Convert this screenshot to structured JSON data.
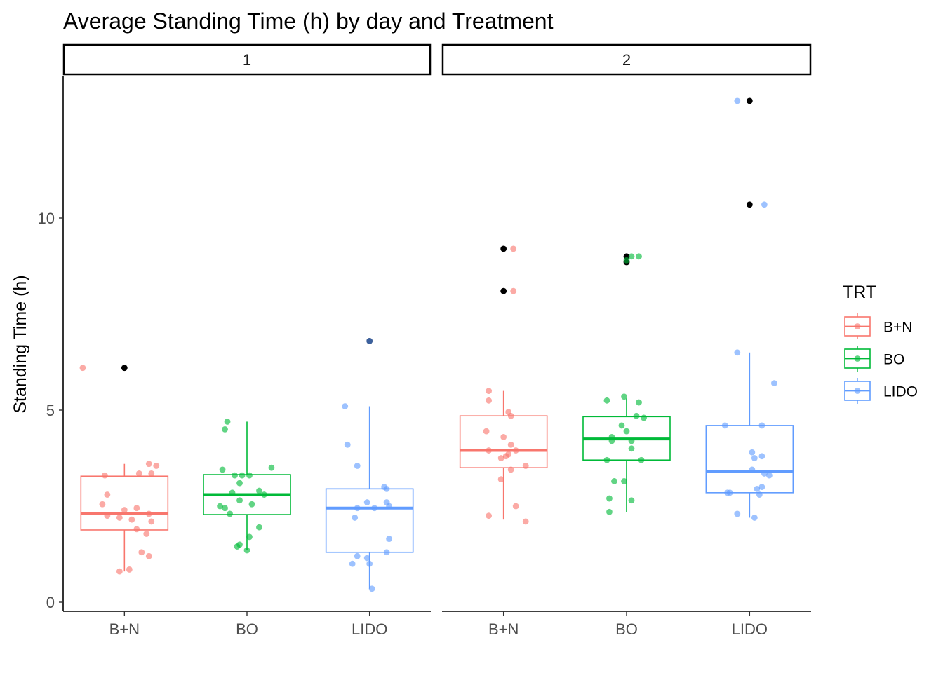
{
  "chart_data": {
    "type": "boxplot",
    "title": "Average Standing Time (h) by day and Treatment",
    "ylabel": "Standing Time (h)",
    "xlabel": "",
    "ylim": [
      -0.3,
      13.4
    ],
    "yticks": [
      0,
      5,
      10
    ],
    "categories": [
      "B+N",
      "BO",
      "LIDO"
    ],
    "facets": [
      "1",
      "2"
    ],
    "legend": {
      "title": "TRT",
      "position": "right",
      "entries": [
        "B+N",
        "BO",
        "LIDO"
      ]
    },
    "colors": {
      "B+N": "#F8766D",
      "BO": "#00BA38",
      "LIDO": "#619CFF",
      "outlier": "#000000"
    },
    "panels": [
      {
        "facet": "1",
        "groups": [
          {
            "name": "B+N",
            "box": {
              "lower_whisker": 0.8,
              "q1": 1.88,
              "median": 2.3,
              "q3": 3.28,
              "upper_whisker": 3.6
            },
            "outliers": [
              6.1
            ],
            "points": [
              [
                -0.34,
                6.1
              ],
              [
                -0.16,
                3.3
              ],
              [
                0.2,
                3.6
              ],
              [
                0.26,
                3.55
              ],
              [
                0.12,
                3.35
              ],
              [
                0.22,
                3.35
              ],
              [
                -0.14,
                2.8
              ],
              [
                -0.18,
                2.55
              ],
              [
                0.0,
                2.4
              ],
              [
                0.1,
                2.45
              ],
              [
                0.2,
                2.3
              ],
              [
                -0.14,
                2.25
              ],
              [
                -0.04,
                2.2
              ],
              [
                0.22,
                2.1
              ],
              [
                0.06,
                2.15
              ],
              [
                0.1,
                1.9
              ],
              [
                0.18,
                1.78
              ],
              [
                0.14,
                1.3
              ],
              [
                0.2,
                1.2
              ],
              [
                -0.04,
                0.8
              ],
              [
                0.04,
                0.85
              ]
            ]
          },
          {
            "name": "BO",
            "box": {
              "lower_whisker": 1.35,
              "q1": 2.28,
              "median": 2.8,
              "q3": 3.32,
              "upper_whisker": 4.7
            },
            "outliers": [],
            "points": [
              [
                -0.16,
                4.7
              ],
              [
                -0.18,
                4.5
              ],
              [
                -0.2,
                3.45
              ],
              [
                0.2,
                3.5
              ],
              [
                -0.1,
                3.3
              ],
              [
                0.02,
                3.3
              ],
              [
                -0.04,
                3.3
              ],
              [
                -0.06,
                3.1
              ],
              [
                -0.12,
                2.85
              ],
              [
                0.1,
                2.9
              ],
              [
                0.14,
                2.8
              ],
              [
                -0.06,
                2.65
              ],
              [
                -0.22,
                2.5
              ],
              [
                -0.18,
                2.45
              ],
              [
                0.04,
                2.55
              ],
              [
                -0.14,
                2.3
              ],
              [
                0.02,
                1.7
              ],
              [
                0.1,
                1.95
              ],
              [
                -0.06,
                1.5
              ],
              [
                -0.08,
                1.45
              ],
              [
                0.0,
                1.35
              ]
            ]
          },
          {
            "name": "LIDO",
            "box": {
              "lower_whisker": 0.35,
              "q1": 1.3,
              "median": 2.45,
              "q3": 2.95,
              "upper_whisker": 5.1
            },
            "outliers": [
              6.8
            ],
            "points": [
              [
                0.0,
                6.8
              ],
              [
                -0.2,
                5.1
              ],
              [
                -0.18,
                4.1
              ],
              [
                -0.1,
                3.55
              ],
              [
                0.12,
                3.0
              ],
              [
                0.14,
                2.95
              ],
              [
                -0.02,
                2.6
              ],
              [
                0.14,
                2.6
              ],
              [
                0.16,
                2.5
              ],
              [
                -0.1,
                2.45
              ],
              [
                0.04,
                2.45
              ],
              [
                -0.12,
                2.2
              ],
              [
                0.16,
                1.65
              ],
              [
                -0.1,
                1.2
              ],
              [
                -0.02,
                1.15
              ],
              [
                0.14,
                1.3
              ],
              [
                -0.14,
                1.0
              ],
              [
                0.0,
                1.0
              ],
              [
                0.02,
                0.35
              ]
            ]
          }
        ]
      },
      {
        "facet": "2",
        "groups": [
          {
            "name": "B+N",
            "box": {
              "lower_whisker": 2.15,
              "q1": 3.5,
              "median": 3.95,
              "q3": 4.85,
              "upper_whisker": 5.5
            },
            "outliers": [
              9.2,
              8.1
            ],
            "points": [
              [
                0.08,
                9.2
              ],
              [
                0.08,
                8.1
              ],
              [
                -0.12,
                5.5
              ],
              [
                -0.12,
                5.25
              ],
              [
                0.04,
                4.95
              ],
              [
                0.06,
                4.85
              ],
              [
                -0.14,
                4.45
              ],
              [
                0.0,
                4.3
              ],
              [
                0.06,
                4.1
              ],
              [
                -0.12,
                3.95
              ],
              [
                0.1,
                3.95
              ],
              [
                0.04,
                3.85
              ],
              [
                -0.02,
                3.75
              ],
              [
                0.02,
                3.8
              ],
              [
                0.18,
                3.55
              ],
              [
                0.06,
                3.45
              ],
              [
                -0.02,
                3.2
              ],
              [
                0.1,
                2.5
              ],
              [
                -0.12,
                2.25
              ],
              [
                0.18,
                2.1
              ]
            ]
          },
          {
            "name": "BO",
            "box": {
              "lower_whisker": 2.35,
              "q1": 3.7,
              "median": 4.25,
              "q3": 4.83,
              "upper_whisker": 5.3
            },
            "outliers": [
              9.0,
              8.85
            ],
            "points": [
              [
                0.04,
                9.0
              ],
              [
                0.1,
                9.0
              ],
              [
                0.0,
                8.9
              ],
              [
                -0.16,
                5.25
              ],
              [
                -0.02,
                5.35
              ],
              [
                0.1,
                5.2
              ],
              [
                0.08,
                4.85
              ],
              [
                0.14,
                4.8
              ],
              [
                -0.04,
                4.6
              ],
              [
                0.0,
                4.45
              ],
              [
                -0.12,
                4.3
              ],
              [
                -0.12,
                4.2
              ],
              [
                0.04,
                4.2
              ],
              [
                0.04,
                4.0
              ],
              [
                -0.16,
                3.7
              ],
              [
                0.12,
                3.7
              ],
              [
                -0.1,
                3.15
              ],
              [
                -0.02,
                3.15
              ],
              [
                -0.14,
                2.7
              ],
              [
                0.04,
                2.65
              ],
              [
                -0.14,
                2.35
              ]
            ]
          },
          {
            "name": "LIDO",
            "box": {
              "lower_whisker": 2.2,
              "q1": 2.85,
              "median": 3.4,
              "q3": 4.6,
              "upper_whisker": 6.5
            },
            "outliers": [
              13.05,
              10.35
            ],
            "points": [
              [
                -0.1,
                13.05
              ],
              [
                0.12,
                10.35
              ],
              [
                -0.1,
                6.5
              ],
              [
                0.2,
                5.7
              ],
              [
                -0.2,
                4.6
              ],
              [
                0.1,
                4.6
              ],
              [
                0.02,
                3.9
              ],
              [
                0.04,
                3.75
              ],
              [
                0.1,
                3.8
              ],
              [
                0.02,
                3.45
              ],
              [
                0.12,
                3.35
              ],
              [
                0.16,
                3.3
              ],
              [
                0.1,
                3.0
              ],
              [
                0.06,
                2.95
              ],
              [
                -0.18,
                2.85
              ],
              [
                -0.16,
                2.85
              ],
              [
                0.08,
                2.8
              ],
              [
                -0.1,
                2.3
              ],
              [
                0.04,
                2.2
              ]
            ]
          }
        ]
      }
    ]
  }
}
